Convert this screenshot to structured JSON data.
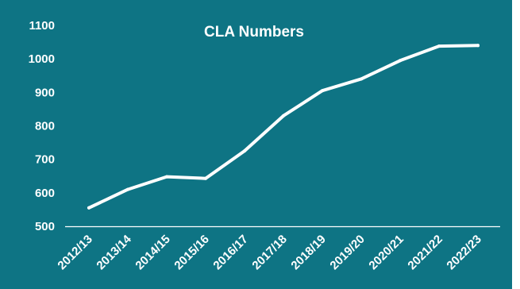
{
  "chart_data": {
    "type": "line",
    "title": "CLA Numbers",
    "xlabel": "",
    "ylabel": "",
    "categories": [
      "2012/13",
      "2013/14",
      "2014/15",
      "2015/16",
      "2016/17",
      "2017/18",
      "2018/19",
      "2019/20",
      "2020/21",
      "2021/22",
      "2022/23"
    ],
    "series": [
      {
        "values": [
          555,
          610,
          648,
          643,
          725,
          830,
          905,
          940,
          995,
          1038,
          1040
        ]
      }
    ],
    "ylim": [
      500,
      1100
    ],
    "yticks": [
      500,
      600,
      700,
      800,
      900,
      1000,
      1100
    ],
    "grid": false,
    "legend": "none",
    "colors": {
      "background": "#0e7484",
      "line": "#ffffff",
      "text": "#ffffff",
      "axis": "#ffffff"
    }
  }
}
